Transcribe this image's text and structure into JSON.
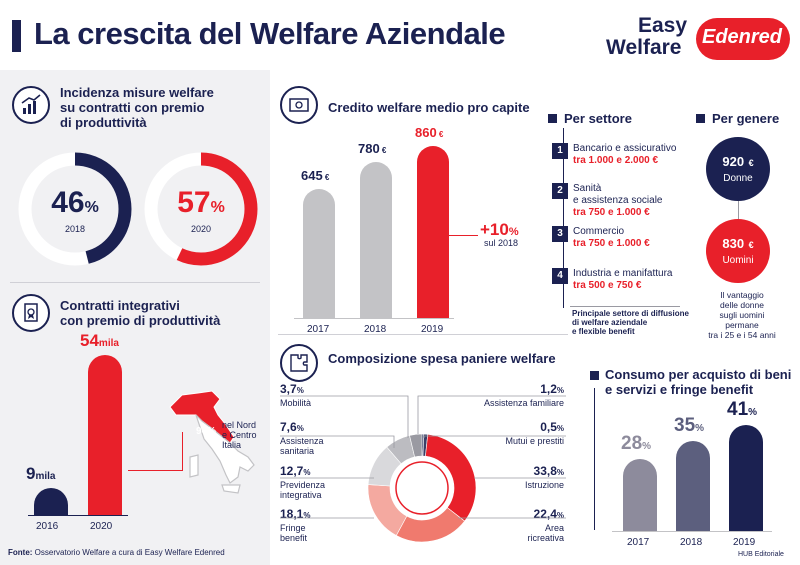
{
  "header": {
    "title": "La crescita del Welfare Aziendale",
    "logo_line1": "Easy",
    "logo_line2": "Welfare",
    "logo_brand": "Edenred"
  },
  "incidenza": {
    "title_l1": "Incidenza misure welfare",
    "title_l2": "su contratti con premio",
    "title_l3": "di produttività",
    "items": [
      {
        "value": "46",
        "unit": "%",
        "year": "2018",
        "fraction": 0.46,
        "color": "#1b2151"
      },
      {
        "value": "57",
        "unit": "%",
        "year": "2020",
        "fraction": 0.57,
        "color": "#e8202a"
      }
    ]
  },
  "contratti": {
    "title_l1": "Contratti integrativi",
    "title_l2": "con premio di produttività",
    "bars": [
      {
        "year": "2016",
        "value": "9",
        "unit": "mila",
        "amount": 9,
        "color": "#1b2151"
      },
      {
        "year": "2020",
        "value": "54",
        "unit": "mila",
        "amount": 54,
        "color": "#e8202a"
      }
    ],
    "map_pct": "94%",
    "map_l1": "nel Nord",
    "map_l2": "e Centro",
    "map_l3": "Italia"
  },
  "credito": {
    "title": "Credito welfare medio pro capite",
    "bars": [
      {
        "year": "2017",
        "label": "645",
        "unit": "€",
        "amount": 645,
        "color": "#c3c3c6",
        "label_color": "#1b2151"
      },
      {
        "year": "2018",
        "label": "780",
        "unit": "€",
        "amount": 780,
        "color": "#c3c3c6",
        "label_color": "#1b2151"
      },
      {
        "year": "2019",
        "label": "860",
        "unit": "€",
        "amount": 860,
        "color": "#e8202a",
        "label_color": "#e8202a"
      }
    ],
    "growth": "+10",
    "growth_unit": "%",
    "growth_note": "sul 2018"
  },
  "settore": {
    "title": "Per settore",
    "items": [
      {
        "num": "1",
        "name_l1": "Bancario e assicurativo",
        "name_l2": "",
        "range": "tra 1.000 e 2.000 €"
      },
      {
        "num": "2",
        "name_l1": "Sanità",
        "name_l2": "e assistenza sociale",
        "range": "tra 750 e 1.000 €"
      },
      {
        "num": "3",
        "name_l1": "Commercio",
        "name_l2": "",
        "range": "tra 750 e 1.000 €"
      },
      {
        "num": "4",
        "name_l1": "Industria e manifattura",
        "name_l2": "",
        "range": "tra 500 e 750 €"
      }
    ],
    "note_l1": "Principale settore di diffusione",
    "note_l2": "di welfare aziendale",
    "note_l3": "e flexible benefit"
  },
  "genere": {
    "title": "Per genere",
    "donne_value": "920",
    "donne_unit": "€",
    "donne_label": "Donne",
    "uomini_value": "830",
    "uomini_unit": "€",
    "uomini_label": "Uomini",
    "note_l1": "Il vantaggio",
    "note_l2": "delle donne",
    "note_l3": "sugli uomini",
    "note_l4": "permane",
    "note_l5": "tra i 25 e i 54 anni"
  },
  "composizione": {
    "title": "Composizione spesa paniere welfare",
    "left": [
      {
        "pct": "3,7",
        "l1": "Mobilità",
        "l2": ""
      },
      {
        "pct": "7,6",
        "l1": "Assistenza",
        "l2": "sanitaria"
      },
      {
        "pct": "12,7",
        "l1": "Previdenza",
        "l2": "integrativa"
      },
      {
        "pct": "18,1",
        "l1": "Fringe",
        "l2": "benefit"
      }
    ],
    "right": [
      {
        "pct": "1,2",
        "l1": "Assistenza familiare",
        "l2": ""
      },
      {
        "pct": "0,5",
        "l1": "Mutui e prestiti",
        "l2": ""
      },
      {
        "pct": "33,8",
        "l1": "Istruzione",
        "l2": ""
      },
      {
        "pct": "22,4",
        "l1": "Area",
        "l2": "ricreativa"
      }
    ],
    "pct_unit": "%",
    "slices": [
      {
        "name": "Mutui e prestiti",
        "value": 0.5,
        "color": "#1b2151"
      },
      {
        "name": "Assistenza familiare",
        "value": 1.2,
        "color": "#3a3f66"
      },
      {
        "name": "Istruzione",
        "value": 33.8,
        "color": "#e8202a"
      },
      {
        "name": "Area ricreativa",
        "value": 22.4,
        "color": "#f07a6e"
      },
      {
        "name": "Fringe benefit",
        "value": 18.1,
        "color": "#f4a9a0"
      },
      {
        "name": "Previdenza integrativa",
        "value": 12.7,
        "color": "#d9d9dc"
      },
      {
        "name": "Assistenza sanitaria",
        "value": 7.6,
        "color": "#bcbcc1"
      },
      {
        "name": "Mobilità",
        "value": 3.7,
        "color": "#9a9aa2"
      }
    ]
  },
  "consumo": {
    "title_l1": "Consumo per acquisto di beni",
    "title_l2": "e servizi e fringe benefit",
    "bars": [
      {
        "year": "2017",
        "value": "28",
        "unit": "%",
        "amount": 28,
        "color": "#8d8b9c"
      },
      {
        "year": "2018",
        "value": "35",
        "unit": "%",
        "amount": 35,
        "color": "#5c5f7e"
      },
      {
        "year": "2019",
        "value": "41",
        "unit": "%",
        "amount": 41,
        "color": "#1b2151"
      }
    ]
  },
  "footer": {
    "fonte_label": "Fonte:",
    "fonte_text": "Osservatorio Welfare a cura di Easy Welfare Edenred",
    "credit": "HUB Editoriale"
  },
  "chart_data": [
    {
      "type": "pie",
      "title": "Incidenza misure welfare su contratti con premio di produttività",
      "categories": [
        "2018",
        "2020"
      ],
      "values": [
        46,
        57
      ],
      "unit": "%"
    },
    {
      "type": "bar",
      "title": "Contratti integrativi con premio di produttività",
      "categories": [
        "2016",
        "2020"
      ],
      "values": [
        9,
        54
      ],
      "unit": "mila"
    },
    {
      "type": "bar",
      "title": "Credito welfare medio pro capite",
      "categories": [
        "2017",
        "2018",
        "2019"
      ],
      "values": [
        645,
        780,
        860
      ],
      "unit": "€"
    },
    {
      "type": "pie",
      "title": "Composizione spesa paniere welfare",
      "categories": [
        "Mobilità",
        "Assistenza sanitaria",
        "Previdenza integrativa",
        "Fringe benefit",
        "Assistenza familiare",
        "Mutui e prestiti",
        "Istruzione",
        "Area ricreativa"
      ],
      "values": [
        3.7,
        7.6,
        12.7,
        18.1,
        1.2,
        0.5,
        33.8,
        22.4
      ],
      "unit": "%"
    },
    {
      "type": "bar",
      "title": "Consumo per acquisto di beni e servizi e fringe benefit",
      "categories": [
        "2017",
        "2018",
        "2019"
      ],
      "values": [
        28,
        35,
        41
      ],
      "unit": "%"
    }
  ]
}
